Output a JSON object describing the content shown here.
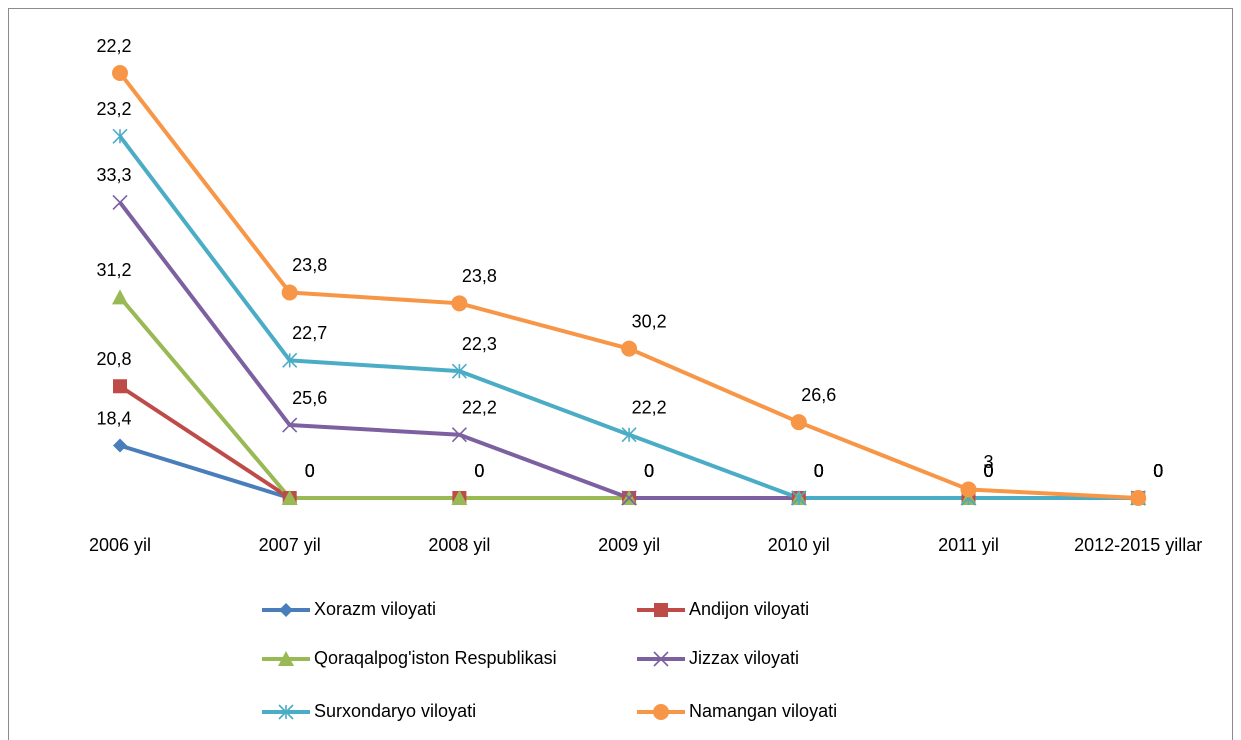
{
  "chart_data": {
    "type": "line",
    "stacked": true,
    "categories": [
      "2006 yil",
      "2007 yil",
      "2008 yil",
      "2009 yil",
      "2010 yil",
      "2011 yil",
      "2012-2015 yillar"
    ],
    "series": [
      {
        "name": "Xorazm viloyati",
        "color": "#4a7ebb",
        "marker": "diamond",
        "values": [
          18.4,
          0,
          0,
          0,
          0,
          0,
          0
        ],
        "value_labels": [
          "18,4",
          "0",
          "0",
          "0",
          "0",
          "0",
          "0"
        ]
      },
      {
        "name": "Andijon viloyati",
        "color": "#be4b48",
        "marker": "square",
        "values": [
          20.8,
          0,
          0,
          0,
          0,
          0,
          0
        ],
        "value_labels": [
          "20,8",
          "0",
          "0",
          "0",
          "0",
          "0",
          "0"
        ]
      },
      {
        "name": "Qoraqalpog'iston Respublikasi",
        "color": "#98b954",
        "marker": "triangle",
        "values": [
          31.2,
          0,
          0,
          0,
          0,
          0,
          0
        ],
        "value_labels": [
          "31,2",
          "0",
          "0",
          "0",
          "0",
          "0",
          "0"
        ]
      },
      {
        "name": "Jizzax viloyati",
        "color": "#7d60a0",
        "marker": "x",
        "values": [
          33.3,
          25.6,
          22.2,
          0,
          0,
          0,
          0
        ],
        "value_labels": [
          "33,3",
          "25,6",
          "22,2",
          "0",
          "0",
          "0",
          "0"
        ]
      },
      {
        "name": "Surxondaryo viloyati",
        "color": "#4bacc6",
        "marker": "star",
        "values": [
          23.2,
          22.7,
          22.3,
          22.2,
          0,
          0,
          0
        ],
        "value_labels": [
          "23,2",
          "22,7",
          "22,3",
          "22,2",
          "0",
          "0",
          "0"
        ]
      },
      {
        "name": "Namangan viloyati",
        "color": "#f79646",
        "marker": "circle",
        "values": [
          22.2,
          23.8,
          23.8,
          30.2,
          26.6,
          3,
          0
        ],
        "value_labels": [
          "22,2",
          "23,8",
          "23,8",
          "30,2",
          "26,6",
          "3",
          "0"
        ]
      }
    ]
  }
}
